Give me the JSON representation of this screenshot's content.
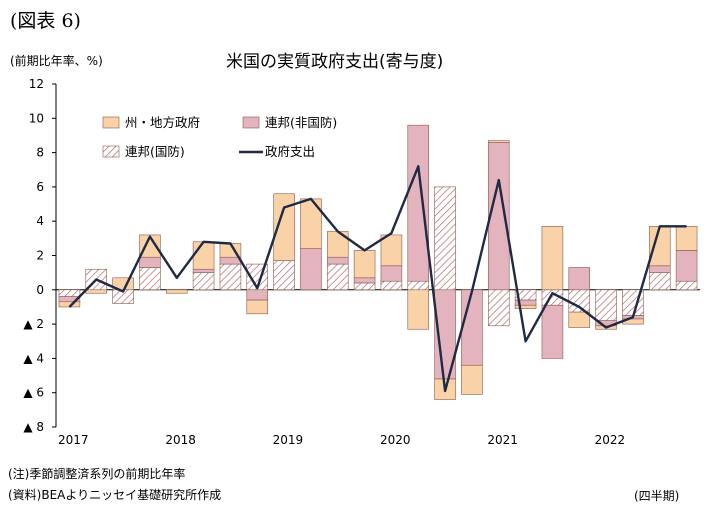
{
  "figure_label": "(図表 6)",
  "unit_label": "(前期比年率、%)",
  "period_label": "(四半期)",
  "notes": [
    "(注)季節調整済系列の前期比年率",
    "(資料)BEAよりニッセイ基礎研究所作成"
  ],
  "colors": {
    "state_local": "#fad2a8",
    "federal_nondefense": "#e3b4bd",
    "federal_defense_hatch": "#b06a6f",
    "bar_stroke": "#8a5a4a",
    "line": "#1f2a44"
  },
  "chart_data": {
    "type": "bar",
    "title": "米国の実質政府支出(寄与度)",
    "ylim": [
      -8,
      12
    ],
    "y_ticks": [
      {
        "value": 12,
        "label": "12"
      },
      {
        "value": 10,
        "label": "10"
      },
      {
        "value": 8,
        "label": "8"
      },
      {
        "value": 6,
        "label": "6"
      },
      {
        "value": 4,
        "label": "4"
      },
      {
        "value": 2,
        "label": "2"
      },
      {
        "value": 0,
        "label": "0"
      },
      {
        "value": -2,
        "label": "▲ 2"
      },
      {
        "value": -4,
        "label": "▲ 4"
      },
      {
        "value": -6,
        "label": "▲ 6"
      },
      {
        "value": -8,
        "label": "▲ 8"
      }
    ],
    "x_tick_labels": [
      {
        "label": "2017",
        "index": 0
      },
      {
        "label": "2018",
        "index": 4
      },
      {
        "label": "2019",
        "index": 8
      },
      {
        "label": "2020",
        "index": 12
      },
      {
        "label": "2021",
        "index": 16
      },
      {
        "label": "2022",
        "index": 20
      }
    ],
    "categories": [
      "2017Q1",
      "2017Q2",
      "2017Q3",
      "2017Q4",
      "2018Q1",
      "2018Q2",
      "2018Q3",
      "2018Q4",
      "2019Q1",
      "2019Q2",
      "2019Q3",
      "2019Q4",
      "2020Q1",
      "2020Q2",
      "2020Q3",
      "2020Q4",
      "2021Q1",
      "2021Q2",
      "2021Q3",
      "2021Q4",
      "2022Q1",
      "2022Q2",
      "2022Q3",
      "2022Q4"
    ],
    "series": [
      {
        "name": "連邦(国防)",
        "kind": "bar",
        "pattern": "hatch",
        "values": [
          -0.4,
          1.2,
          -0.8,
          1.3,
          0.0,
          1.0,
          1.5,
          1.5,
          1.7,
          0.0,
          1.5,
          0.4,
          0.5,
          0.5,
          6.0,
          0.0,
          -2.1,
          -0.6,
          -0.9,
          -1.3,
          -1.8,
          -1.5,
          1.0,
          0.5
        ]
      },
      {
        "name": "連邦(非国防)",
        "kind": "bar",
        "pattern": "solid",
        "values": [
          -0.3,
          0.0,
          0.0,
          0.6,
          0.0,
          0.2,
          0.4,
          -0.6,
          0.0,
          2.4,
          0.4,
          0.3,
          0.9,
          9.1,
          -5.2,
          -4.4,
          8.6,
          -0.3,
          -3.1,
          1.3,
          -0.3,
          -0.2,
          0.4,
          1.8
        ]
      },
      {
        "name": "州・地方政府",
        "kind": "bar",
        "pattern": "solid",
        "values": [
          -0.3,
          -0.2,
          0.7,
          1.3,
          -0.2,
          1.6,
          0.8,
          -0.8,
          3.9,
          2.9,
          1.5,
          1.6,
          1.8,
          -2.3,
          -1.2,
          -1.7,
          0.1,
          -0.2,
          3.7,
          -0.9,
          -0.2,
          -0.3,
          2.3,
          1.4
        ]
      },
      {
        "name": "政府支出",
        "kind": "line",
        "values": [
          -1.0,
          0.6,
          -0.1,
          3.1,
          0.7,
          2.8,
          2.7,
          0.1,
          4.8,
          5.3,
          3.4,
          2.3,
          3.3,
          7.2,
          -5.9,
          -0.1,
          6.4,
          -3.0,
          -0.2,
          -1.0,
          -2.2,
          -1.6,
          3.7,
          3.7
        ]
      }
    ],
    "legend": [
      "州・地方政府",
      "連邦(非国防)",
      "連邦(国防)",
      "政府支出"
    ],
    "legend_placement": "top-left (inside plot)",
    "grid": false
  }
}
